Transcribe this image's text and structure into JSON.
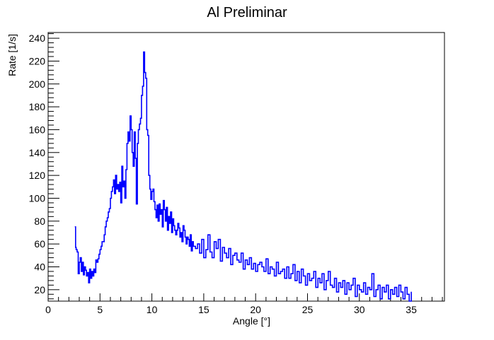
{
  "chart_data": {
    "type": "line",
    "title": "Al Preliminar",
    "xlabel": "Angle [°]",
    "ylabel": "Rate [1/s]",
    "xlim": [
      0,
      38.2
    ],
    "ylim": [
      10,
      245
    ],
    "xticks": [
      0,
      5,
      10,
      15,
      20,
      25,
      30,
      35
    ],
    "yticks": [
      20,
      40,
      60,
      80,
      100,
      120,
      140,
      160,
      180,
      200,
      220,
      240
    ],
    "grid": false,
    "legend": "none",
    "series": [
      {
        "color": "#0000ff",
        "x": [
          2.6,
          2.65,
          2.7,
          2.8,
          2.9,
          3.0,
          3.1,
          3.2,
          3.3,
          3.4,
          3.5,
          3.6,
          3.7,
          3.8,
          3.9,
          4.0,
          4.1,
          4.2,
          4.3,
          4.4,
          4.5,
          4.6,
          4.7,
          4.8,
          4.9,
          5.0,
          5.1,
          5.2,
          5.3,
          5.4,
          5.5,
          5.6,
          5.7,
          5.8,
          5.9,
          6.0,
          6.1,
          6.2,
          6.3,
          6.4,
          6.5,
          6.6,
          6.7,
          6.8,
          6.9,
          7.0,
          7.1,
          7.2,
          7.3,
          7.4,
          7.5,
          7.6,
          7.7,
          7.8,
          7.9,
          8.0,
          8.1,
          8.2,
          8.3,
          8.4,
          8.5,
          8.6,
          8.7,
          8.8,
          8.9,
          9.0,
          9.1,
          9.2,
          9.3,
          9.4,
          9.5,
          9.6,
          9.7,
          9.8,
          9.9,
          10.0,
          10.1,
          10.2,
          10.3,
          10.4,
          10.5,
          10.6,
          10.7,
          10.8,
          10.9,
          11.0,
          11.1,
          11.2,
          11.3,
          11.4,
          11.5,
          11.6,
          11.7,
          11.8,
          11.9,
          12.0,
          12.1,
          12.2,
          12.3,
          12.4,
          12.5,
          12.6,
          12.7,
          12.8,
          12.9,
          13.0,
          13.1,
          13.2,
          13.3,
          13.4,
          13.5,
          13.6,
          13.7,
          13.8,
          13.9,
          14.0,
          14.2,
          14.4,
          14.6,
          14.8,
          15.0,
          15.2,
          15.4,
          15.6,
          15.8,
          16.0,
          16.2,
          16.4,
          16.6,
          16.8,
          17.0,
          17.2,
          17.4,
          17.6,
          17.8,
          18.0,
          18.2,
          18.4,
          18.6,
          18.8,
          19.0,
          19.2,
          19.4,
          19.6,
          19.8,
          20.0,
          20.2,
          20.4,
          20.6,
          20.8,
          21.0,
          21.2,
          21.4,
          21.6,
          21.8,
          22.0,
          22.2,
          22.4,
          22.6,
          22.8,
          23.0,
          23.2,
          23.4,
          23.6,
          23.8,
          24.0,
          24.2,
          24.4,
          24.6,
          24.8,
          25.0,
          25.2,
          25.4,
          25.6,
          25.8,
          26.0,
          26.2,
          26.4,
          26.6,
          26.8,
          27.0,
          27.2,
          27.4,
          27.6,
          27.8,
          28.0,
          28.2,
          28.4,
          28.6,
          28.8,
          29.0,
          29.2,
          29.4,
          29.6,
          29.8,
          30.0,
          30.2,
          30.4,
          30.6,
          30.8,
          31.0,
          31.2,
          31.4,
          31.6,
          31.8,
          32.0,
          32.2,
          32.4,
          32.6,
          32.8,
          33.0,
          33.2,
          33.4,
          33.6,
          33.8,
          34.0,
          34.2,
          34.4,
          34.6,
          34.8,
          35.0
        ],
        "y": [
          75,
          57,
          55,
          53,
          34,
          44,
          48,
          36,
          44,
          33,
          40,
          37,
          32,
          35,
          26,
          38,
          30,
          36,
          32,
          38,
          35,
          46,
          44,
          47,
          51,
          55,
          58,
          62,
          62,
          68,
          75,
          80,
          83,
          88,
          91,
          100,
          106,
          110,
          116,
          104,
          120,
          108,
          112,
          106,
          114,
          96,
          128,
          110,
          115,
          100,
          125,
          148,
          158,
          150,
          172,
          160,
          140,
          128,
          158,
          135,
          95,
          148,
          160,
          165,
          170,
          190,
          198,
          228,
          210,
          205,
          160,
          155,
          120,
          108,
          99,
          106,
          108,
          97,
          90,
          83,
          94,
          80,
          95,
          86,
          90,
          75,
          98,
          90,
          80,
          92,
          72,
          84,
          78,
          88,
          70,
          82,
          76,
          72,
          68,
          72,
          78,
          74,
          66,
          70,
          62,
          76,
          72,
          66,
          60,
          66,
          64,
          58,
          68,
          54,
          62,
          58,
          56,
          60,
          52,
          64,
          48,
          55,
          68,
          53,
          48,
          62,
          56,
          64,
          45,
          57,
          52,
          48,
          56,
          42,
          50,
          52,
          46,
          44,
          52,
          38,
          46,
          42,
          48,
          38,
          43,
          36,
          42,
          44,
          40,
          36,
          47,
          34,
          40,
          38,
          32,
          44,
          34,
          36,
          38,
          30,
          40,
          30,
          34,
          42,
          28,
          36,
          26,
          38,
          32,
          24,
          34,
          28,
          30,
          36,
          22,
          30,
          26,
          34,
          20,
          28,
          36,
          24,
          22,
          30,
          18,
          26,
          22,
          28,
          16,
          26,
          20,
          24,
          30,
          14,
          24,
          20,
          18,
          26,
          16,
          22,
          20,
          34,
          14,
          20,
          24,
          12,
          22,
          18,
          24,
          12,
          20,
          16,
          22,
          14,
          24,
          18,
          12,
          22,
          16,
          10,
          18
        ]
      }
    ]
  }
}
